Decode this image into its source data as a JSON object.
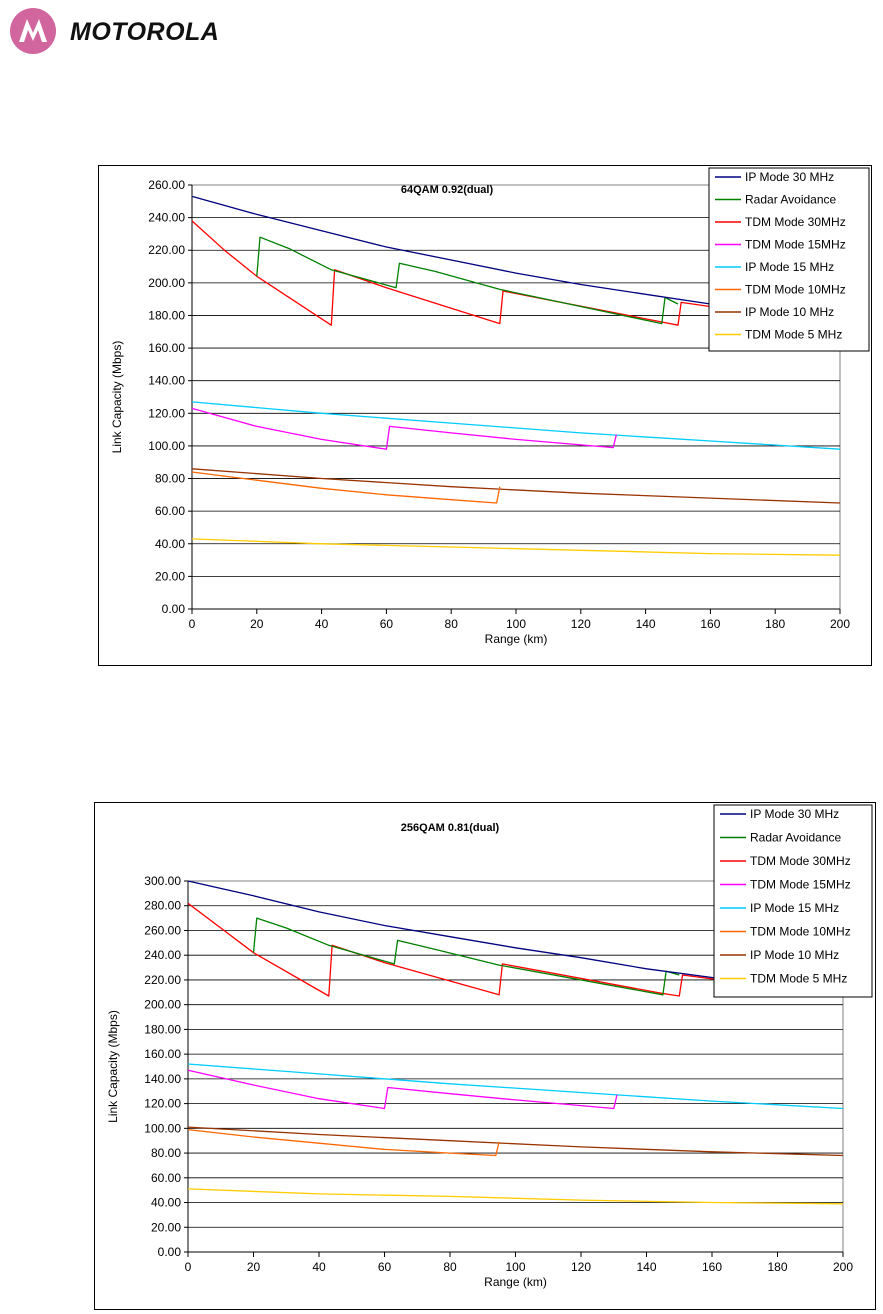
{
  "logo": {
    "text": "MOTOROLA",
    "icon": "motorola-batwing-icon",
    "color": "#d0669d"
  },
  "chart_data": [
    {
      "type": "line",
      "title": "64QAM 0.92(dual)",
      "xlabel": "Range (km)",
      "ylabel": "Link Capacity (Mbps)",
      "xlim": [
        0,
        200
      ],
      "ylim": [
        0,
        260
      ],
      "yticks": [
        "0.00",
        "20.00",
        "40.00",
        "60.00",
        "80.00",
        "100.00",
        "120.00",
        "140.00",
        "160.00",
        "180.00",
        "200.00",
        "220.00",
        "240.00",
        "260.00"
      ],
      "xticks": [
        "0",
        "20",
        "40",
        "60",
        "80",
        "100",
        "120",
        "140",
        "160",
        "180",
        "200"
      ],
      "grid": "horizontal",
      "legend": "top-right",
      "series": [
        {
          "name": "IP Mode 30 MHz",
          "color": "#000080",
          "points": [
            [
              0,
              253
            ],
            [
              20,
              242
            ],
            [
              40,
              232
            ],
            [
              60,
              222
            ],
            [
              80,
              214
            ],
            [
              100,
              206
            ],
            [
              120,
              199
            ],
            [
              140,
              193
            ],
            [
              160,
              187
            ],
            [
              180,
              181
            ],
            [
              200,
              176
            ]
          ]
        },
        {
          "name": "Radar Avoidance",
          "color": "#008000",
          "points": [
            [
              20,
              204
            ],
            [
              21,
              228
            ],
            [
              30,
              221
            ],
            [
              43,
              208
            ],
            [
              63,
              197
            ],
            [
              64,
              212
            ],
            [
              75,
              207
            ],
            [
              95,
              196
            ],
            [
              145,
              175
            ],
            [
              146,
              191
            ],
            [
              150,
              187
            ]
          ]
        },
        {
          "name": "TDM Mode 30MHz",
          "color": "#ff0000",
          "points": [
            [
              0,
              238
            ],
            [
              10,
              220
            ],
            [
              20,
              204
            ],
            [
              43,
              174
            ],
            [
              44,
              208
            ],
            [
              60,
              197
            ],
            [
              95,
              175
            ],
            [
              96,
              195
            ],
            [
              145,
              176
            ],
            [
              150,
              174
            ],
            [
              151,
              188
            ],
            [
              200,
              174
            ]
          ]
        },
        {
          "name": "TDM Mode 15MHz",
          "color": "#ff00ff",
          "points": [
            [
              0,
              123
            ],
            [
              20,
              112
            ],
            [
              40,
              104
            ],
            [
              60,
              98
            ],
            [
              61,
              112
            ],
            [
              80,
              108
            ],
            [
              100,
              104
            ],
            [
              130,
              99
            ],
            [
              131,
              107
            ]
          ]
        },
        {
          "name": "IP Mode 15 MHz",
          "color": "#00ccff",
          "points": [
            [
              0,
              127
            ],
            [
              40,
              120
            ],
            [
              80,
              114
            ],
            [
              120,
              108
            ],
            [
              160,
              103
            ],
            [
              200,
              98
            ]
          ]
        },
        {
          "name": "TDM Mode 10MHz",
          "color": "#ff6600",
          "points": [
            [
              0,
              84
            ],
            [
              20,
              79
            ],
            [
              40,
              74
            ],
            [
              60,
              70
            ],
            [
              80,
              67
            ],
            [
              94,
              65
            ],
            [
              95,
              75
            ]
          ]
        },
        {
          "name": "IP Mode 10 MHz",
          "color": "#993300",
          "points": [
            [
              0,
              86
            ],
            [
              40,
              80
            ],
            [
              80,
              75
            ],
            [
              120,
              71
            ],
            [
              160,
              68
            ],
            [
              200,
              65
            ]
          ]
        },
        {
          "name": "TDM Mode 5 MHz",
          "color": "#ffcc00",
          "points": [
            [
              0,
              43
            ],
            [
              40,
              40
            ],
            [
              80,
              38
            ],
            [
              120,
              36
            ],
            [
              160,
              34
            ],
            [
              200,
              33
            ]
          ]
        }
      ]
    },
    {
      "type": "line",
      "title": "256QAM 0.81(dual)",
      "xlabel": "Range (km)",
      "ylabel": "Link Capacity (Mbps)",
      "xlim": [
        0,
        200
      ],
      "ylim": [
        0,
        300
      ],
      "yticks": [
        "0.00",
        "20.00",
        "40.00",
        "60.00",
        "80.00",
        "100.00",
        "120.00",
        "140.00",
        "160.00",
        "180.00",
        "200.00",
        "220.00",
        "240.00",
        "260.00",
        "280.00",
        "300.00"
      ],
      "xticks": [
        "0",
        "20",
        "40",
        "60",
        "80",
        "100",
        "120",
        "140",
        "160",
        "180",
        "200"
      ],
      "grid": "horizontal",
      "legend": "top-right",
      "series": [
        {
          "name": "IP Mode 30 MHz",
          "color": "#000080",
          "points": [
            [
              0,
              300
            ],
            [
              20,
              288
            ],
            [
              40,
              275
            ],
            [
              60,
              264
            ],
            [
              80,
              255
            ],
            [
              100,
              246
            ],
            [
              120,
              238
            ],
            [
              140,
              229
            ],
            [
              160,
              222
            ],
            [
              180,
              215
            ],
            [
              200,
              208
            ]
          ]
        },
        {
          "name": "Radar Avoidance",
          "color": "#008000",
          "points": [
            [
              20,
              242
            ],
            [
              21,
              270
            ],
            [
              30,
              262
            ],
            [
              43,
              248
            ],
            [
              63,
              233
            ],
            [
              64,
              252
            ],
            [
              75,
              245
            ],
            [
              95,
              232
            ],
            [
              145,
              208
            ],
            [
              146,
              227
            ],
            [
              150,
              224
            ]
          ]
        },
        {
          "name": "TDM Mode 30MHz",
          "color": "#ff0000",
          "points": [
            [
              0,
              282
            ],
            [
              10,
              262
            ],
            [
              20,
              242
            ],
            [
              43,
              207
            ],
            [
              44,
              248
            ],
            [
              60,
              234
            ],
            [
              95,
              208
            ],
            [
              96,
              233
            ],
            [
              145,
              209
            ],
            [
              150,
              207
            ],
            [
              151,
              224
            ],
            [
              200,
              207
            ]
          ]
        },
        {
          "name": "TDM Mode 15MHz",
          "color": "#ff00ff",
          "points": [
            [
              0,
              147
            ],
            [
              20,
              135
            ],
            [
              40,
              124
            ],
            [
              60,
              116
            ],
            [
              61,
              133
            ],
            [
              80,
              128
            ],
            [
              100,
              123
            ],
            [
              130,
              116
            ],
            [
              131,
              127
            ]
          ]
        },
        {
          "name": "IP Mode 15 MHz",
          "color": "#00ccff",
          "points": [
            [
              0,
              152
            ],
            [
              40,
              144
            ],
            [
              80,
              136
            ],
            [
              120,
              129
            ],
            [
              160,
              122
            ],
            [
              200,
              116
            ]
          ]
        },
        {
          "name": "TDM Mode 10MHz",
          "color": "#ff6600",
          "points": [
            [
              0,
              99
            ],
            [
              20,
              93
            ],
            [
              40,
              88
            ],
            [
              60,
              83
            ],
            [
              80,
              80
            ],
            [
              94,
              78
            ],
            [
              95,
              89
            ]
          ]
        },
        {
          "name": "IP Mode 10 MHz",
          "color": "#993300",
          "points": [
            [
              0,
              101
            ],
            [
              40,
              95
            ],
            [
              80,
              90
            ],
            [
              120,
              85
            ],
            [
              160,
              81
            ],
            [
              200,
              78
            ]
          ]
        },
        {
          "name": "TDM Mode 5 MHz",
          "color": "#ffcc00",
          "points": [
            [
              0,
              51
            ],
            [
              40,
              47
            ],
            [
              80,
              45
            ],
            [
              120,
              42
            ],
            [
              160,
              40
            ],
            [
              200,
              39
            ]
          ]
        }
      ]
    }
  ]
}
